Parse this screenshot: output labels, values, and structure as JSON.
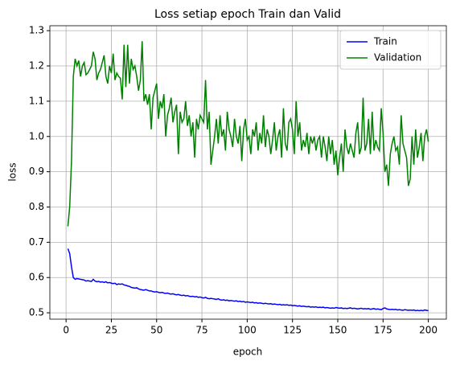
{
  "chart_data": {
    "type": "line",
    "title": "Loss setiap epoch Train dan Valid",
    "xlabel": "epoch",
    "ylabel": "loss",
    "x": [
      1,
      2,
      3,
      4,
      5,
      6,
      7,
      8,
      9,
      10,
      11,
      12,
      13,
      14,
      15,
      16,
      17,
      18,
      19,
      20,
      21,
      22,
      23,
      24,
      25,
      26,
      27,
      28,
      29,
      30,
      31,
      32,
      33,
      34,
      35,
      36,
      37,
      38,
      39,
      40,
      41,
      42,
      43,
      44,
      45,
      46,
      47,
      48,
      49,
      50,
      51,
      52,
      53,
      54,
      55,
      56,
      57,
      58,
      59,
      60,
      61,
      62,
      63,
      64,
      65,
      66,
      67,
      68,
      69,
      70,
      71,
      72,
      73,
      74,
      75,
      76,
      77,
      78,
      79,
      80,
      81,
      82,
      83,
      84,
      85,
      86,
      87,
      88,
      89,
      90,
      91,
      92,
      93,
      94,
      95,
      96,
      97,
      98,
      99,
      100,
      101,
      102,
      103,
      104,
      105,
      106,
      107,
      108,
      109,
      110,
      111,
      112,
      113,
      114,
      115,
      116,
      117,
      118,
      119,
      120,
      121,
      122,
      123,
      124,
      125,
      126,
      127,
      128,
      129,
      130,
      131,
      132,
      133,
      134,
      135,
      136,
      137,
      138,
      139,
      140,
      141,
      142,
      143,
      144,
      145,
      146,
      147,
      148,
      149,
      150,
      151,
      152,
      153,
      154,
      155,
      156,
      157,
      158,
      159,
      160,
      161,
      162,
      163,
      164,
      165,
      166,
      167,
      168,
      169,
      170,
      171,
      172,
      173,
      174,
      175,
      176,
      177,
      178,
      179,
      180,
      181,
      182,
      183,
      184,
      185,
      186,
      187,
      188,
      189,
      190,
      191,
      192,
      193,
      194,
      195,
      196,
      197,
      198,
      199,
      200
    ],
    "series": [
      {
        "name": "Train",
        "color": "#0000ff",
        "values": [
          0.682,
          0.668,
          0.63,
          0.6,
          0.595,
          0.597,
          0.596,
          0.595,
          0.594,
          0.593,
          0.59,
          0.591,
          0.59,
          0.589,
          0.595,
          0.59,
          0.588,
          0.589,
          0.587,
          0.588,
          0.586,
          0.588,
          0.585,
          0.586,
          0.584,
          0.583,
          0.584,
          0.58,
          0.582,
          0.581,
          0.582,
          0.579,
          0.578,
          0.576,
          0.575,
          0.572,
          0.571,
          0.57,
          0.571,
          0.568,
          0.566,
          0.565,
          0.564,
          0.566,
          0.564,
          0.562,
          0.562,
          0.56,
          0.559,
          0.56,
          0.558,
          0.557,
          0.558,
          0.556,
          0.555,
          0.556,
          0.554,
          0.553,
          0.554,
          0.552,
          0.551,
          0.552,
          0.55,
          0.549,
          0.55,
          0.548,
          0.549,
          0.547,
          0.546,
          0.547,
          0.545,
          0.546,
          0.544,
          0.545,
          0.543,
          0.542,
          0.544,
          0.541,
          0.54,
          0.541,
          0.54,
          0.539,
          0.538,
          0.54,
          0.537,
          0.536,
          0.537,
          0.535,
          0.536,
          0.534,
          0.535,
          0.534,
          0.533,
          0.534,
          0.532,
          0.533,
          0.531,
          0.532,
          0.53,
          0.531,
          0.53,
          0.529,
          0.53,
          0.528,
          0.529,
          0.527,
          0.528,
          0.527,
          0.526,
          0.527,
          0.526,
          0.525,
          0.526,
          0.524,
          0.525,
          0.524,
          0.523,
          0.524,
          0.522,
          0.523,
          0.522,
          0.523,
          0.521,
          0.522,
          0.52,
          0.521,
          0.52,
          0.519,
          0.52,
          0.518,
          0.519,
          0.518,
          0.517,
          0.518,
          0.516,
          0.517,
          0.516,
          0.517,
          0.515,
          0.516,
          0.515,
          0.516,
          0.514,
          0.515,
          0.514,
          0.513,
          0.514,
          0.513,
          0.515,
          0.514,
          0.513,
          0.514,
          0.512,
          0.513,
          0.512,
          0.513,
          0.514,
          0.512,
          0.513,
          0.512,
          0.511,
          0.512,
          0.513,
          0.511,
          0.512,
          0.511,
          0.512,
          0.51,
          0.511,
          0.512,
          0.51,
          0.511,
          0.51,
          0.509,
          0.512,
          0.514,
          0.511,
          0.51,
          0.509,
          0.51,
          0.509,
          0.51,
          0.508,
          0.509,
          0.508,
          0.507,
          0.509,
          0.508,
          0.507,
          0.508,
          0.507,
          0.508,
          0.506,
          0.507,
          0.506,
          0.507,
          0.506,
          0.508,
          0.507,
          0.506
        ]
      },
      {
        "name": "Validation",
        "color": "#008000",
        "values": [
          0.745,
          0.8,
          0.93,
          1.17,
          1.22,
          1.2,
          1.215,
          1.17,
          1.2,
          1.21,
          1.175,
          1.18,
          1.19,
          1.2,
          1.24,
          1.22,
          1.16,
          1.18,
          1.19,
          1.21,
          1.23,
          1.17,
          1.15,
          1.2,
          1.18,
          1.235,
          1.16,
          1.18,
          1.17,
          1.165,
          1.105,
          1.26,
          1.14,
          1.26,
          1.15,
          1.22,
          1.19,
          1.2,
          1.17,
          1.13,
          1.16,
          1.27,
          1.1,
          1.12,
          1.09,
          1.12,
          1.02,
          1.11,
          1.13,
          1.15,
          1.05,
          1.1,
          1.08,
          1.12,
          1.0,
          1.06,
          1.08,
          1.11,
          1.04,
          1.07,
          1.09,
          0.95,
          1.07,
          1.04,
          1.05,
          1.1,
          1.03,
          1.06,
          1.0,
          1.04,
          0.94,
          1.05,
          1.02,
          1.06,
          1.05,
          1.04,
          1.16,
          1.02,
          1.07,
          0.92,
          0.96,
          1.0,
          1.05,
          0.98,
          1.06,
          1.0,
          1.02,
          0.96,
          1.07,
          1.02,
          1.0,
          0.97,
          1.05,
          1.0,
          0.98,
          1.03,
          0.93,
          1.02,
          1.05,
          0.99,
          1.0,
          0.95,
          1.02,
          1.0,
          1.04,
          0.96,
          1.01,
          0.98,
          1.06,
          0.97,
          1.02,
          1.0,
          0.95,
          0.99,
          1.04,
          0.96,
          1.0,
          1.02,
          0.94,
          1.08,
          0.98,
          0.96,
          1.04,
          1.05,
          1.02,
          0.95,
          1.1,
          1.0,
          1.04,
          0.96,
          0.99,
          0.97,
          1.01,
          0.95,
          1.0,
          0.98,
          1.0,
          0.96,
          0.99,
          1.0,
          0.94,
          1.0,
          0.97,
          0.93,
          1.0,
          0.95,
          0.99,
          0.92,
          0.96,
          0.89,
          0.94,
          0.98,
          0.9,
          1.02,
          0.97,
          0.95,
          0.98,
          0.96,
          0.94,
          1.01,
          1.04,
          0.95,
          0.97,
          1.11,
          0.96,
          0.98,
          1.05,
          0.95,
          1.07,
          0.96,
          0.99,
          0.97,
          0.96,
          1.08,
          1.01,
          0.9,
          0.92,
          0.86,
          0.95,
          0.98,
          1.0,
          0.96,
          0.97,
          0.92,
          1.06,
          0.98,
          0.96,
          0.94,
          0.86,
          0.88,
          1.0,
          0.92,
          1.02,
          0.94,
          0.97,
          1.01,
          0.93,
          1.0,
          1.02,
          0.985
        ]
      }
    ],
    "xlim": [
      -8.95,
      209.95
    ],
    "xticks": [
      0,
      25,
      50,
      75,
      100,
      125,
      150,
      175,
      200
    ],
    "ylim": [
      0.482,
      1.314
    ],
    "yticks": [
      0.5,
      0.6,
      0.7,
      0.8,
      0.9,
      {
        "value": 1,
        "label": "1.0"
      },
      1.1,
      1.2,
      1.3
    ],
    "grid": true,
    "legend": "upper right"
  }
}
